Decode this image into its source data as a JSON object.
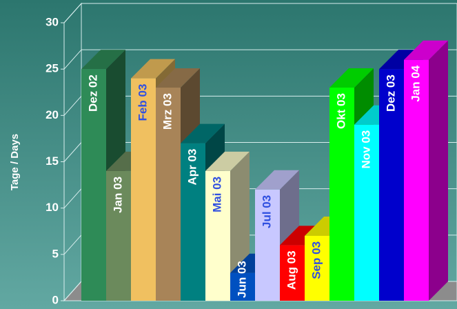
{
  "chart_data": {
    "type": "bar3d",
    "y_label": "Tage / Days",
    "categories": [
      "Dez 02",
      "Jan 03",
      "Feb 03",
      "Mrz 03",
      "Apr 03",
      "Mai 03",
      "Jun 03",
      "Jul 03",
      "Aug 03",
      "Sep 03",
      "Okt 03",
      "Nov 03",
      "Dez 03",
      "Jan 04"
    ],
    "values": [
      25,
      14,
      24,
      23,
      17,
      14,
      3,
      12,
      6,
      7,
      23,
      19,
      25,
      26
    ],
    "colors": [
      "#2e8b57",
      "#6b8a5c",
      "#f0c060",
      "#a88458",
      "#008080",
      "#ffffcc",
      "#0050c0",
      "#c8c8ff",
      "#ff0000",
      "#ffff00",
      "#00ff00",
      "#00ffff",
      "#0000cc",
      "#ff00ff"
    ],
    "label_colors": [
      "#ffffff",
      "#ffffff",
      "#3050e0",
      "#ffffff",
      "#ffffff",
      "#3050e0",
      "#ffffff",
      "#3050e0",
      "#ffffff",
      "#3050e0",
      "#ffffff",
      "#ffffff",
      "#ffffff",
      "#ffffff"
    ],
    "ylim": [
      0,
      30
    ],
    "yticks": [
      0,
      5,
      10,
      15,
      20,
      25,
      30
    ],
    "grid": true
  }
}
